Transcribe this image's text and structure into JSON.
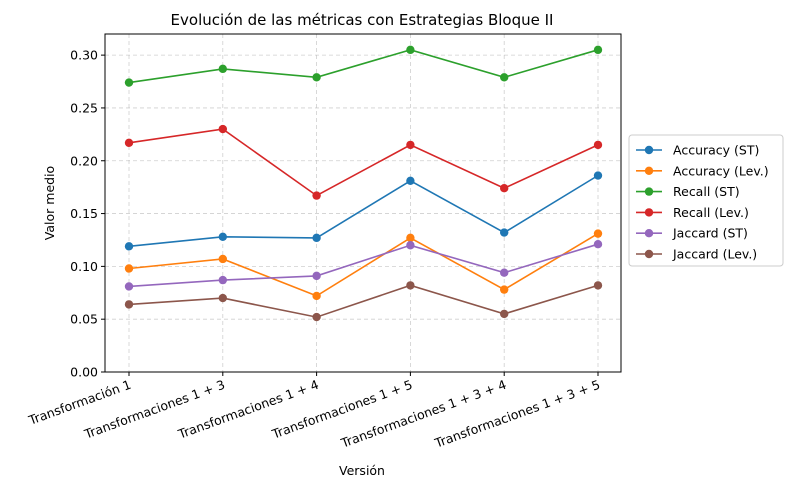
{
  "chart_data": {
    "type": "line",
    "title": "Evolución de las métricas con Estrategias Bloque II",
    "xlabel": "Versión",
    "ylabel": "Valor medio",
    "categories": [
      "Transformación 1",
      "Transformaciones 1 + 3",
      "Transformaciones 1 + 4",
      "Transformaciones 1 + 5",
      "Transformaciones 1 + 3 + 4",
      "Transformaciones 1 + 3 + 5"
    ],
    "ylim": [
      0.0,
      0.32
    ],
    "yticks": [
      "0.00",
      "0.05",
      "0.10",
      "0.15",
      "0.20",
      "0.25",
      "0.30"
    ],
    "grid": true,
    "legend_position": "right",
    "series": [
      {
        "name": "Accuracy (ST)",
        "color": "#1f77b4",
        "values": [
          0.119,
          0.128,
          0.127,
          0.181,
          0.132,
          0.186
        ]
      },
      {
        "name": "Accuracy (Lev.)",
        "color": "#ff7f0e",
        "values": [
          0.098,
          0.107,
          0.072,
          0.127,
          0.078,
          0.131
        ]
      },
      {
        "name": "Recall (ST)",
        "color": "#2ca02c",
        "values": [
          0.274,
          0.287,
          0.279,
          0.305,
          0.279,
          0.305
        ]
      },
      {
        "name": "Recall (Lev.)",
        "color": "#d62728",
        "values": [
          0.217,
          0.23,
          0.167,
          0.215,
          0.174,
          0.215
        ]
      },
      {
        "name": "Jaccard (ST)",
        "color": "#9467bd",
        "values": [
          0.081,
          0.087,
          0.091,
          0.12,
          0.094,
          0.121
        ]
      },
      {
        "name": "Jaccard (Lev.)",
        "color": "#8c564b",
        "values": [
          0.064,
          0.07,
          0.052,
          0.082,
          0.055,
          0.082
        ]
      }
    ]
  }
}
